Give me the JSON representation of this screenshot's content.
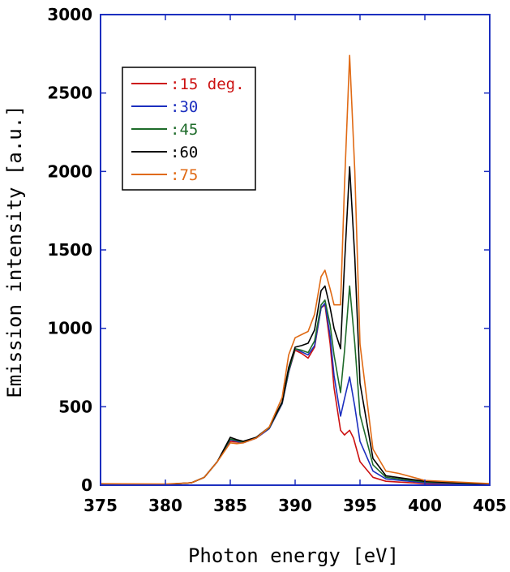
{
  "chart_data": {
    "type": "line",
    "xlabel": "Photon energy [eV]",
    "ylabel": "Emission intensity [a.u.]",
    "xlim": [
      375,
      405
    ],
    "ylim": [
      0,
      3000
    ],
    "xticks": [
      375,
      380,
      385,
      390,
      395,
      400,
      405
    ],
    "yticks": [
      0,
      500,
      1000,
      1500,
      2000,
      2500,
      3000
    ],
    "x_tick_labels": [
      "375",
      "380",
      "385",
      "390",
      "395",
      "400",
      "405"
    ],
    "y_tick_labels": [
      "0",
      "500",
      "1000",
      "1500",
      "2000",
      "2500",
      "3000"
    ],
    "legend_position": "top-left",
    "grid": false,
    "colors": {
      "axis": "#1c2fbf"
    },
    "series": [
      {
        "name": ":15 deg.",
        "color": "#cc1111",
        "points": [
          [
            375,
            5
          ],
          [
            380,
            5
          ],
          [
            382,
            15
          ],
          [
            383,
            50
          ],
          [
            384,
            150
          ],
          [
            385,
            280
          ],
          [
            385.5,
            275
          ],
          [
            386,
            270
          ],
          [
            387,
            300
          ],
          [
            388,
            360
          ],
          [
            389,
            520
          ],
          [
            389.5,
            720
          ],
          [
            390,
            860
          ],
          [
            390.5,
            840
          ],
          [
            391,
            810
          ],
          [
            391.5,
            880
          ],
          [
            392,
            1130
          ],
          [
            392.3,
            1150
          ],
          [
            392.7,
            900
          ],
          [
            393,
            620
          ],
          [
            393.5,
            350
          ],
          [
            393.8,
            320
          ],
          [
            394.2,
            350
          ],
          [
            394.5,
            300
          ],
          [
            395,
            150
          ],
          [
            396,
            50
          ],
          [
            397,
            25
          ],
          [
            400,
            10
          ],
          [
            405,
            5
          ]
        ]
      },
      {
        "name": ":30",
        "color": "#1c2fbf",
        "points": [
          [
            375,
            5
          ],
          [
            380,
            5
          ],
          [
            382,
            15
          ],
          [
            383,
            50
          ],
          [
            384,
            150
          ],
          [
            385,
            290
          ],
          [
            385.5,
            280
          ],
          [
            386,
            270
          ],
          [
            387,
            300
          ],
          [
            388,
            360
          ],
          [
            389,
            520
          ],
          [
            389.5,
            720
          ],
          [
            390,
            870
          ],
          [
            390.5,
            850
          ],
          [
            391,
            830
          ],
          [
            391.5,
            890
          ],
          [
            392,
            1130
          ],
          [
            392.3,
            1160
          ],
          [
            392.7,
            950
          ],
          [
            393,
            700
          ],
          [
            393.5,
            440
          ],
          [
            393.8,
            550
          ],
          [
            394.2,
            690
          ],
          [
            394.6,
            500
          ],
          [
            395,
            280
          ],
          [
            396,
            90
          ],
          [
            397,
            40
          ],
          [
            400,
            15
          ],
          [
            405,
            5
          ]
        ]
      },
      {
        "name": ":45",
        "color": "#1e6b2a",
        "points": [
          [
            375,
            5
          ],
          [
            380,
            5
          ],
          [
            382,
            15
          ],
          [
            383,
            50
          ],
          [
            384,
            150
          ],
          [
            385,
            295
          ],
          [
            385.5,
            285
          ],
          [
            386,
            275
          ],
          [
            387,
            305
          ],
          [
            388,
            365
          ],
          [
            389,
            525
          ],
          [
            389.5,
            730
          ],
          [
            390,
            870
          ],
          [
            390.5,
            860
          ],
          [
            391,
            845
          ],
          [
            391.5,
            920
          ],
          [
            392,
            1150
          ],
          [
            392.3,
            1180
          ],
          [
            392.7,
            1020
          ],
          [
            393,
            830
          ],
          [
            393.5,
            590
          ],
          [
            393.8,
            850
          ],
          [
            394.2,
            1270
          ],
          [
            394.6,
            900
          ],
          [
            395,
            450
          ],
          [
            396,
            130
          ],
          [
            397,
            50
          ],
          [
            400,
            20
          ],
          [
            405,
            5
          ]
        ]
      },
      {
        "name": ":60",
        "color": "#000000",
        "points": [
          [
            375,
            5
          ],
          [
            380,
            5
          ],
          [
            382,
            15
          ],
          [
            383,
            50
          ],
          [
            384,
            150
          ],
          [
            385,
            305
          ],
          [
            385.5,
            290
          ],
          [
            386,
            280
          ],
          [
            387,
            305
          ],
          [
            388,
            370
          ],
          [
            389,
            530
          ],
          [
            389.5,
            750
          ],
          [
            390,
            880
          ],
          [
            390.5,
            890
          ],
          [
            391,
            905
          ],
          [
            391.5,
            990
          ],
          [
            392,
            1240
          ],
          [
            392.3,
            1270
          ],
          [
            392.7,
            1130
          ],
          [
            393,
            1000
          ],
          [
            393.5,
            870
          ],
          [
            393.8,
            1400
          ],
          [
            394.2,
            2030
          ],
          [
            394.6,
            1450
          ],
          [
            395,
            650
          ],
          [
            396,
            170
          ],
          [
            397,
            60
          ],
          [
            400,
            25
          ],
          [
            405,
            5
          ]
        ]
      },
      {
        "name": ":75",
        "color": "#e06a14",
        "points": [
          [
            375,
            10
          ],
          [
            380,
            8
          ],
          [
            382,
            15
          ],
          [
            383,
            50
          ],
          [
            384,
            150
          ],
          [
            385,
            270
          ],
          [
            385.5,
            265
          ],
          [
            386,
            270
          ],
          [
            387,
            300
          ],
          [
            388,
            370
          ],
          [
            389,
            560
          ],
          [
            389.5,
            830
          ],
          [
            390,
            940
          ],
          [
            390.5,
            960
          ],
          [
            391,
            980
          ],
          [
            391.5,
            1090
          ],
          [
            392,
            1330
          ],
          [
            392.3,
            1370
          ],
          [
            392.7,
            1250
          ],
          [
            393,
            1150
          ],
          [
            393.5,
            1150
          ],
          [
            393.8,
            1900
          ],
          [
            394.2,
            2740
          ],
          [
            394.6,
            2000
          ],
          [
            395,
            900
          ],
          [
            396,
            230
          ],
          [
            397,
            90
          ],
          [
            398,
            75
          ],
          [
            400,
            30
          ],
          [
            405,
            10
          ]
        ]
      }
    ]
  }
}
